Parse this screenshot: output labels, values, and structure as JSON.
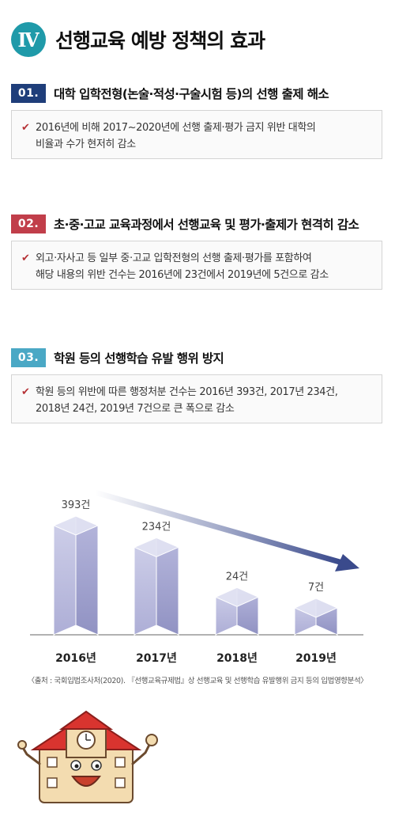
{
  "header": {
    "numeral": "Ⅳ",
    "title": "선행교육 예방 정책의 효과"
  },
  "sections": [
    {
      "number": "01.",
      "title": "대학 입학전형(논술·적성·구술시험 등)의 선행 출제 해소",
      "lines": [
        "2016년에 비해 2017~2020년에 선행 출제·평가 금지 위반 대학의",
        "비율과 수가 현저히 감소"
      ]
    },
    {
      "number": "02.",
      "title": "초·중·고교 교육과정에서 선행교육 및 평가·출제가 현격히 감소",
      "lines": [
        "외고·자사고 등 일부 중·고교 입학전형의 선행 출제·평가를 포함하여",
        "해당 내용의 위반 건수는 2016년에 23건에서 2019년에 5건으로 감소"
      ]
    },
    {
      "number": "03.",
      "title": "학원 등의 선행학습 유발 행위 방지",
      "lines": [
        "학원 등의 위반에 따른 행정처분 건수는 2016년 393건, 2017년 234건,",
        "2018년 24건, 2019년 7건으로 큰 폭으로 감소"
      ]
    }
  ],
  "colors": {
    "numeral": "#1f9aa9",
    "badge_01": "#1f3e7a",
    "badge_02": "#c13e4a",
    "badge_03": "#4aa8c5",
    "check": "#b63236",
    "prism": "#9b9ccc",
    "arrow": "#3a4a8c"
  },
  "chart_data": {
    "type": "bar",
    "categories": [
      "2016년",
      "2017년",
      "2018년",
      "2019년"
    ],
    "values": [
      393,
      234,
      24,
      7
    ],
    "value_labels": [
      "393건",
      "234건",
      "24건",
      "7건"
    ],
    "trend": "decreasing"
  },
  "source": "〈출처 : 국회입법조사처(2020). 『선행교육규제법』상 선행교육 및 선행학습 유발행위 금지 등의 입법영향분석〉"
}
